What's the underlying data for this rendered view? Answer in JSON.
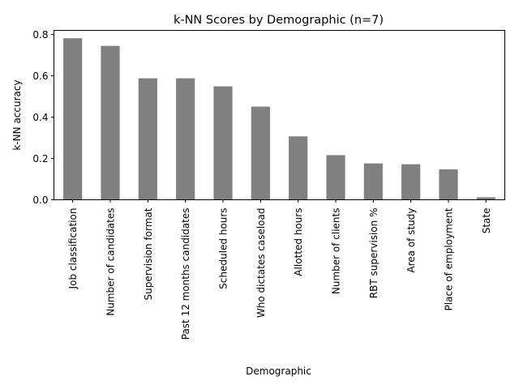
{
  "chart_data": {
    "type": "bar",
    "title": "k-NN Scores by Demographic (n=7)",
    "xlabel": "Demographic",
    "ylabel": "k-NN accuracy",
    "categories": [
      "Job classification",
      "Number of candidates",
      "Supervision format",
      "Past 12 months candidates",
      "Scheduled hours",
      "Who dictates caseload",
      "Allotted hours",
      "Number of clients",
      "RBT supervision %",
      "Area of study",
      "Place of employment",
      "State"
    ],
    "values": [
      0.782,
      0.745,
      0.588,
      0.588,
      0.549,
      0.451,
      0.307,
      0.216,
      0.176,
      0.172,
      0.147,
      0.012
    ],
    "ylim": [
      0,
      0.82
    ],
    "yticks": [
      "0.0",
      "0.2",
      "0.4",
      "0.6",
      "0.8"
    ],
    "grid": false,
    "bar_color": "#808080"
  }
}
